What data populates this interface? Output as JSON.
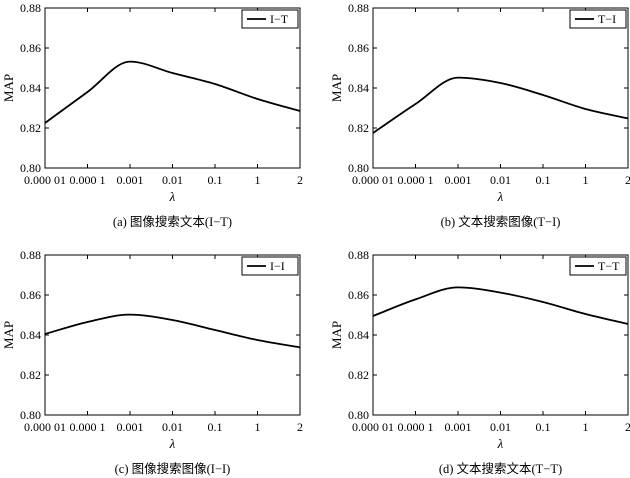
{
  "chart_data": [
    {
      "type": "line",
      "caption": "(a) 图像搜索文本(I−T)",
      "xlabel": "λ",
      "ylabel": "MAP",
      "x": [
        "0.000 01",
        "0.000 1",
        "0.001",
        "0.01",
        "0.1",
        "1",
        "2"
      ],
      "ylim": [
        0.8,
        0.88
      ],
      "yticks": [
        "0.80",
        "0.82",
        "0.84",
        "0.86",
        "0.88"
      ],
      "legend_position": "top-right",
      "series": [
        {
          "name": "I−T",
          "values": [
            0.8225,
            0.838,
            0.8532,
            0.8475,
            0.842,
            0.8345,
            0.8285
          ]
        }
      ]
    },
    {
      "type": "line",
      "caption": "(b) 文本搜索图像(T−I)",
      "xlabel": "λ",
      "ylabel": "MAP",
      "x": [
        "0.000 01",
        "0.000 1",
        "0.001",
        "0.01",
        "0.1",
        "1",
        "2"
      ],
      "ylim": [
        0.8,
        0.88
      ],
      "yticks": [
        "0.80",
        "0.82",
        "0.84",
        "0.86",
        "0.88"
      ],
      "legend_position": "top-right",
      "series": [
        {
          "name": "T−I",
          "values": [
            0.8175,
            0.832,
            0.8452,
            0.8425,
            0.8365,
            0.8295,
            0.8248
          ]
        }
      ]
    },
    {
      "type": "line",
      "caption": "(c) 图像搜索图像(I−I)",
      "xlabel": "λ",
      "ylabel": "MAP",
      "x": [
        "0.000 01",
        "0.000 1",
        "0.001",
        "0.01",
        "0.1",
        "1",
        "2"
      ],
      "ylim": [
        0.8,
        0.88
      ],
      "yticks": [
        "0.80",
        "0.82",
        "0.84",
        "0.86",
        "0.88"
      ],
      "legend_position": "top-right",
      "series": [
        {
          "name": "I−I",
          "values": [
            0.8405,
            0.8465,
            0.8502,
            0.8475,
            0.8425,
            0.8375,
            0.8338
          ]
        }
      ]
    },
    {
      "type": "line",
      "caption": "(d) 文本搜索文本(T−T)",
      "xlabel": "λ",
      "ylabel": "MAP",
      "x": [
        "0.000 01",
        "0.000 1",
        "0.001",
        "0.01",
        "0.1",
        "1",
        "2"
      ],
      "ylim": [
        0.8,
        0.88
      ],
      "yticks": [
        "0.80",
        "0.82",
        "0.84",
        "0.86",
        "0.88"
      ],
      "legend_position": "top-right",
      "series": [
        {
          "name": "T−T",
          "values": [
            0.8495,
            0.8578,
            0.8638,
            0.8612,
            0.8565,
            0.8505,
            0.8455
          ]
        }
      ]
    }
  ]
}
